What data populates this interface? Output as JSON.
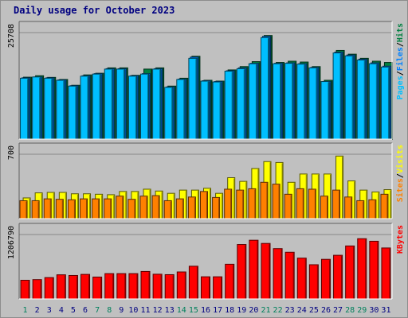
{
  "chart_data": {
    "type": "bar",
    "title": "Daily usage for October 2023",
    "days": [
      "1",
      "2",
      "3",
      "4",
      "5",
      "6",
      "7",
      "8",
      "9",
      "10",
      "11",
      "12",
      "13",
      "14",
      "15",
      "16",
      "17",
      "18",
      "19",
      "20",
      "21",
      "22",
      "23",
      "24",
      "25",
      "26",
      "27",
      "28",
      "29",
      "30",
      "31"
    ],
    "weekend_days": [
      "1",
      "7",
      "8",
      "14",
      "15",
      "21",
      "22",
      "28",
      "29"
    ],
    "panels": [
      {
        "name": "hits-files-pages",
        "ymax": 25708,
        "ymax_label": "25708",
        "legend": [
          {
            "text": "Pages",
            "color": "#00bfff"
          },
          {
            "text": "Files",
            "color": "#0080ff"
          },
          {
            "text": "Hits",
            "color": "#008040"
          }
        ],
        "series": [
          {
            "name": "Hits",
            "color": "#008040",
            "values": [
              14950,
              15300,
              14900,
              14400,
              13000,
              15500,
              15900,
              17200,
              17200,
              15400,
              16900,
              17200,
              12800,
              14700,
              20000,
              14200,
              14000,
              16700,
              17500,
              18700,
              25000,
              18500,
              18800,
              18600,
              17500,
              14200,
              21400,
              20500,
              19500,
              18800,
              18500
            ]
          },
          {
            "name": "Files",
            "color": "#0080ff",
            "values": [
              14800,
              15000,
              14800,
              14300,
              12900,
              15300,
              15800,
              17000,
              17000,
              15300,
              15800,
              17000,
              12600,
              14500,
              19800,
              14100,
              13900,
              16500,
              17200,
              18300,
              24800,
              18300,
              18400,
              18200,
              17300,
              13900,
              21000,
              20300,
              19300,
              18400,
              17600
            ]
          },
          {
            "name": "Pages",
            "color": "#00bfff",
            "values": [
              14700,
              15000,
              14700,
              14200,
              12800,
              15200,
              15700,
              16900,
              16900,
              15200,
              15700,
              16900,
              12500,
              14400,
              19500,
              14000,
              13800,
              16400,
              17000,
              18200,
              24500,
              18200,
              18300,
              18100,
              17200,
              13900,
              20800,
              20100,
              19100,
              18200,
              17400
            ]
          }
        ]
      },
      {
        "name": "visits-sites",
        "ymax": 700,
        "ymax_label": "700",
        "legend": [
          {
            "text": "Sites",
            "color": "#ff8000"
          },
          {
            "text": "Visits",
            "color": "#ffff00"
          }
        ],
        "series": [
          {
            "name": "Visits",
            "color": "#ffff00",
            "values": [
              225,
              280,
              285,
              285,
              270,
              270,
              265,
              260,
              295,
              295,
              320,
              300,
              275,
              310,
              310,
              330,
              275,
              445,
              405,
              545,
              620,
              610,
              395,
              485,
              485,
              485,
              680,
              410,
              310,
              290,
              315
            ]
          },
          {
            "name": "Sites",
            "color": "#ff8000",
            "values": [
              195,
              195,
              215,
              210,
              205,
              215,
              215,
              215,
              245,
              210,
              245,
              250,
              195,
              215,
              235,
              295,
              230,
              320,
              310,
              325,
              395,
              375,
              265,
              325,
              320,
              245,
              310,
              235,
              195,
              205,
              265
            ]
          }
        ]
      },
      {
        "name": "kbytes",
        "ymax": 1206790,
        "ymax_label": "1206790",
        "legend": [
          {
            "text": "KBytes",
            "color": "#ff0000"
          }
        ],
        "series": [
          {
            "name": "KBytes",
            "color": "#ff0000",
            "values": [
              350000,
              362000,
              400000,
              452000,
              440000,
              460000,
              410000,
              474000,
              474000,
              474000,
              515000,
              463000,
              455000,
              506000,
              613000,
              415000,
              415000,
              650000,
              1020000,
              1100000,
              1040000,
              943000,
              875000,
              765000,
              641000,
              742000,
              818000,
              993000,
              1129000,
              1081000,
              955000
            ]
          }
        ]
      }
    ]
  }
}
